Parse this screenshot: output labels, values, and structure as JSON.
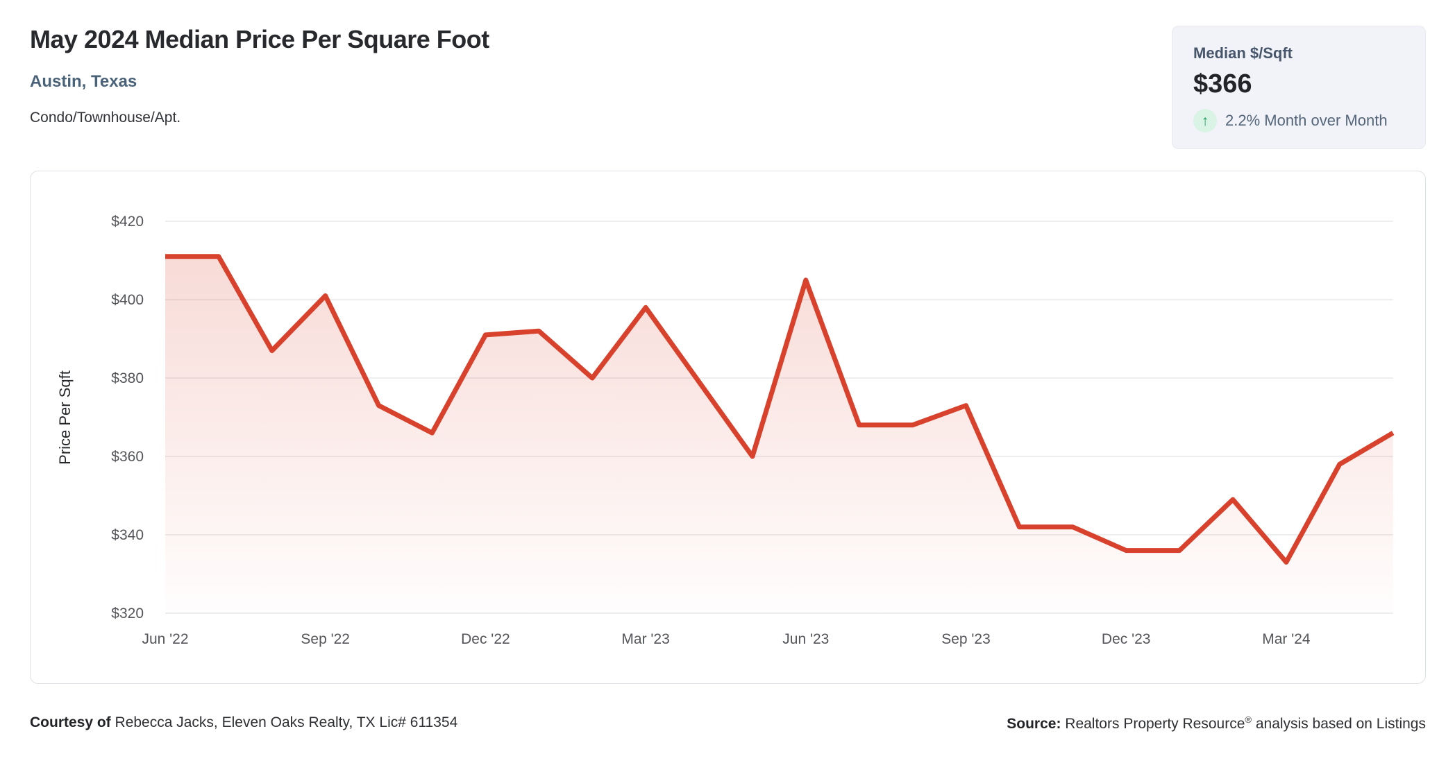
{
  "header": {
    "title": "May 2024 Median Price Per Square Foot",
    "location": "Austin, Texas",
    "property_type": "Condo/Townhouse/Apt."
  },
  "stat_card": {
    "label": "Median $/Sqft",
    "value": "$366",
    "up_arrow_icon": "↑",
    "change_text": "2.2% Month over Month",
    "circle_color": "#d9f3e4",
    "arrow_color": "#1d9e5a"
  },
  "chart_data": {
    "type": "area",
    "title": "May 2024 Median Price Per Square Foot",
    "ylabel": "Price Per Sqft",
    "xlabel": "",
    "x": [
      "Jun '22",
      "Jul '22",
      "Aug '22",
      "Sep '22",
      "Oct '22",
      "Nov '22",
      "Dec '22",
      "Jan '23",
      "Feb '23",
      "Mar '23",
      "Apr '23",
      "May '23",
      "Jun '23",
      "Jul '23",
      "Aug '23",
      "Sep '23",
      "Oct '23",
      "Nov '23",
      "Dec '23",
      "Jan '24",
      "Feb '24",
      "Mar '24",
      "Apr '24",
      "May '24"
    ],
    "series": [
      {
        "name": "Median $/Sqft",
        "values": [
          411,
          411,
          387,
          401,
          373,
          366,
          391,
          392,
          380,
          398,
          379,
          360,
          405,
          368,
          368,
          373,
          342,
          342,
          336,
          336,
          349,
          333,
          358,
          366
        ]
      }
    ],
    "x_tick_labels": [
      "Jun '22",
      "Sep '22",
      "Dec '22",
      "Mar '23",
      "Jun '23",
      "Sep '23",
      "Dec '23",
      "Mar '24"
    ],
    "x_tick_every": 3,
    "y_ticks": [
      320,
      340,
      360,
      380,
      400,
      420
    ],
    "y_tick_prefix": "$",
    "ylim": [
      320,
      420
    ],
    "grid": true,
    "legend": false,
    "line_color": "#d8412c",
    "area_color": "#d8412c",
    "grid_color": "#e7e8ea",
    "tick_label_color": "#54555a"
  },
  "footer": {
    "courtesy_bold": "Courtesy of",
    "courtesy_rest": " Rebecca Jacks, Eleven Oaks Realty, TX Lic# 611354",
    "source_bold": "Source:",
    "source_mid": " Realtors Property Resource",
    "source_reg": "®",
    "source_tail": " analysis based on Listings"
  }
}
